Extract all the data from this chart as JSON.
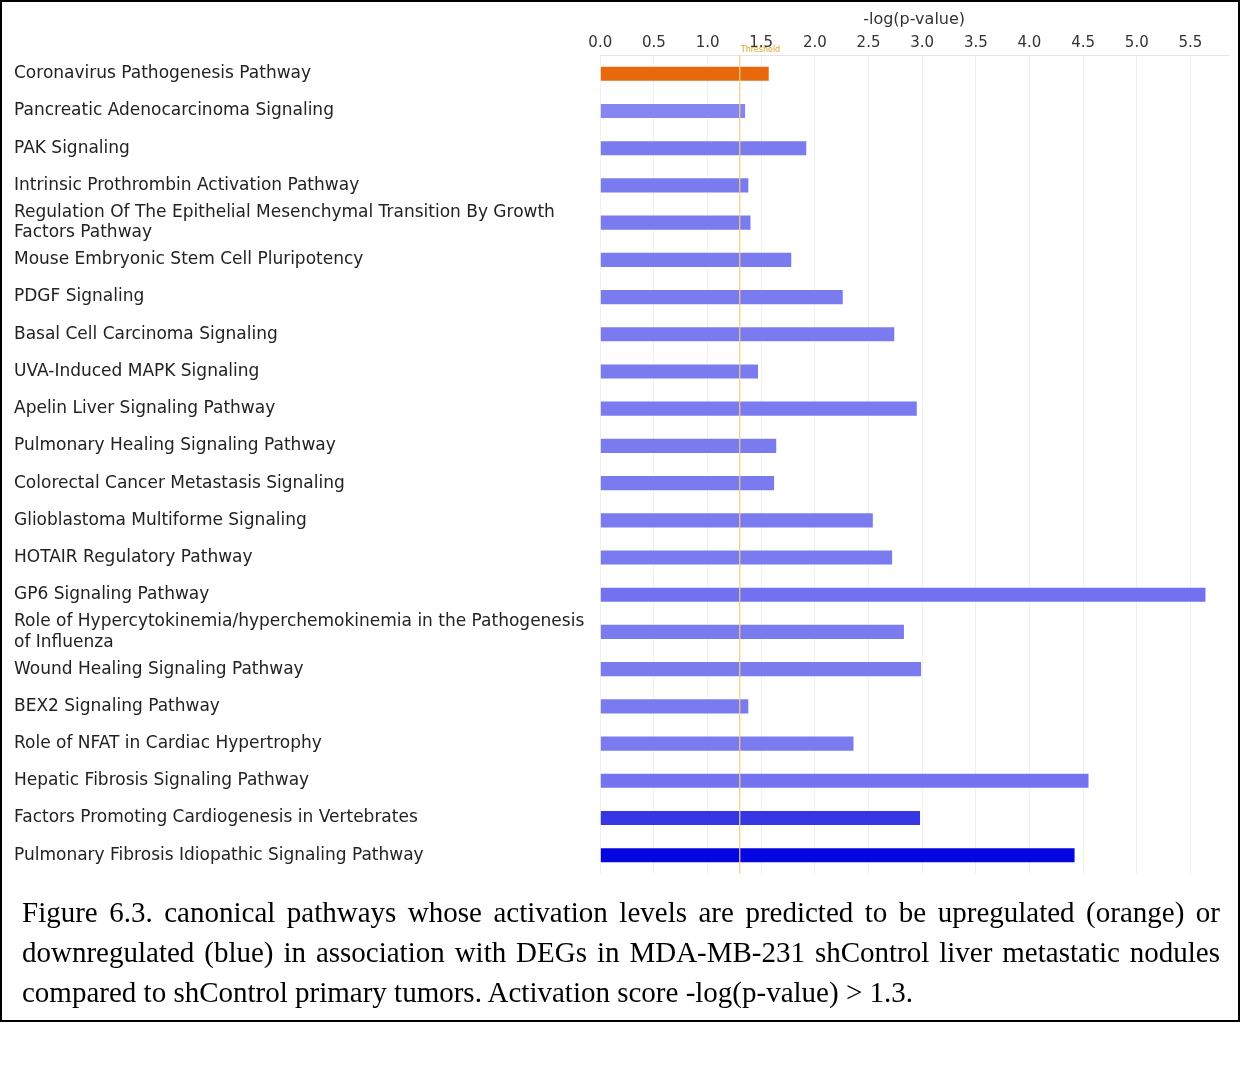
{
  "chart_data": {
    "type": "bar",
    "orientation": "horizontal",
    "xlabel": "-log(p-value)",
    "categories": [
      "Coronavirus Pathogenesis Pathway",
      "Pancreatic Adenocarcinoma Signaling",
      "PAK Signaling",
      "Intrinsic Prothrombin Activation Pathway",
      "Regulation Of The Epithelial Mesenchymal Transition By Growth Factors Pathway",
      "Mouse Embryonic Stem Cell Pluripotency",
      "PDGF Signaling",
      "Basal Cell Carcinoma Signaling",
      "UVA-Induced MAPK Signaling",
      "Apelin Liver Signaling Pathway",
      "Pulmonary Healing Signaling Pathway",
      "Colorectal Cancer Metastasis Signaling",
      "Glioblastoma Multiforme Signaling",
      "HOTAIR Regulatory Pathway",
      "GP6 Signaling Pathway",
      "Role of Hypercytokinemia/hyperchemokinemia in the Pathogenesis of Influenza",
      "Wound Healing Signaling Pathway",
      "BEX2 Signaling Pathway",
      "Role of NFAT in Cardiac Hypertrophy",
      "Hepatic Fibrosis Signaling Pathway",
      "Factors Promoting Cardiogenesis in Vertebrates",
      "Pulmonary Fibrosis Idiopathic Signaling Pathway"
    ],
    "values": [
      1.57,
      1.35,
      1.92,
      1.38,
      1.4,
      1.78,
      2.26,
      2.74,
      1.47,
      2.95,
      1.64,
      1.62,
      2.54,
      2.72,
      5.64,
      2.83,
      2.99,
      1.38,
      2.36,
      4.55,
      2.98,
      4.42
    ],
    "colors": [
      "#e8680c",
      "#8686f2",
      "#7b7bf0",
      "#7b7bf0",
      "#7b7bf0",
      "#7b7bf0",
      "#7b7bf0",
      "#7b7bf0",
      "#7b7bf0",
      "#7b7bf0",
      "#7b7bf0",
      "#7b7bf0",
      "#7b7bf0",
      "#7b7bf0",
      "#7272f0",
      "#7b7bf0",
      "#7b7bf0",
      "#7b7bf0",
      "#7b7bf0",
      "#7474f0",
      "#3636e4",
      "#0505e2"
    ],
    "xlim": [
      0,
      5.85
    ],
    "xticks": [
      {
        "value": 0,
        "label": "0.0"
      },
      {
        "value": 0.5,
        "label": "0.5"
      },
      {
        "value": 1,
        "label": "1.0"
      },
      {
        "value": 1.5,
        "label": "1.5"
      },
      {
        "value": 2,
        "label": "2.0"
      },
      {
        "value": 2.5,
        "label": "2.5"
      },
      {
        "value": 3,
        "label": "3.0"
      },
      {
        "value": 3.5,
        "label": "3.5"
      },
      {
        "value": 4,
        "label": "4.0"
      },
      {
        "value": 4.5,
        "label": "4.5"
      },
      {
        "value": 5,
        "label": "5.0"
      },
      {
        "value": 5.5,
        "label": "5.5"
      }
    ],
    "ref_lines": [
      {
        "axis": "x",
        "value": 1.3,
        "label": "Threshold",
        "color": "#f0d080"
      }
    ],
    "grid": "x",
    "legend": false,
    "annotations": [
      "Figure 6.3. canonical pathways whose activation levels are predicted to be upregulated (orange) or downregulated (blue) in association with DEGs in MDA-MB-231 shControl liver metastatic nodules compared to shControl primary tumors. Activation score -log(p-value) > 1.3."
    ]
  }
}
